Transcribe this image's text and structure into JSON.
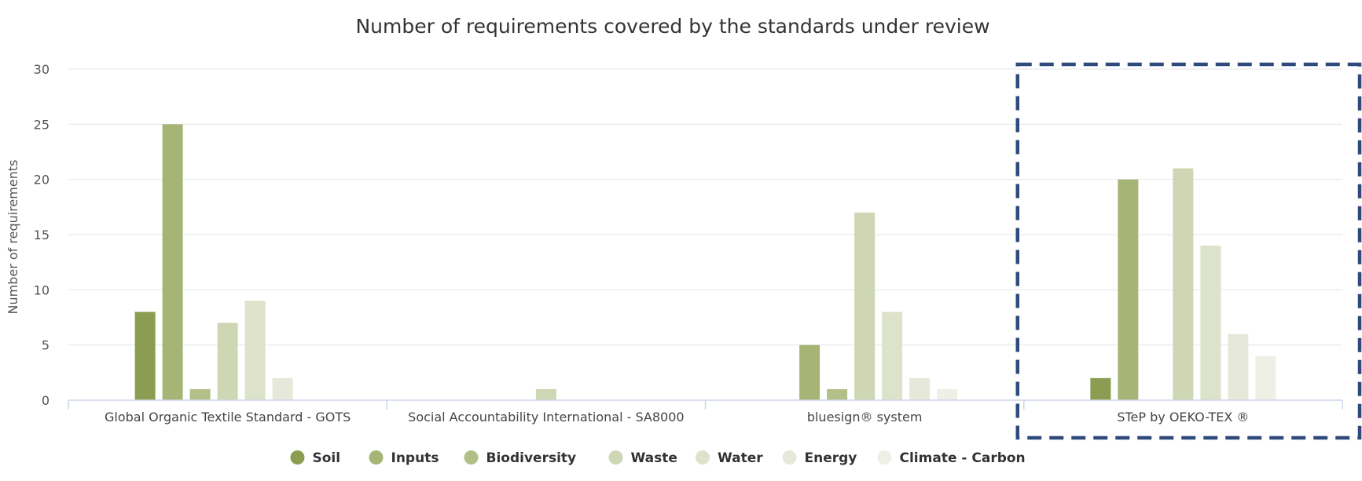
{
  "chart_data": {
    "type": "bar",
    "title": "Number of requirements covered by the standards under review",
    "xlabel": "",
    "ylabel": "Number of requirements",
    "ylim": [
      0,
      30
    ],
    "yticks": [
      0,
      5,
      10,
      15,
      20,
      25,
      30
    ],
    "grid": true,
    "legend_position": "bottom",
    "highlighted_category": "STeP by OEKO-TEX ®",
    "highlight_color": "#2e4a7d",
    "categories": [
      "Global Organic Textile Standard - GOTS",
      "Social Accountability International - SA8000",
      "bluesign® system",
      "STeP by OEKO-TEX ®"
    ],
    "series": [
      {
        "name": "Soil",
        "color": "#8c9c50",
        "values": [
          8,
          0,
          0,
          2
        ]
      },
      {
        "name": "Inputs",
        "color": "#a6b475",
        "values": [
          25,
          0,
          5,
          20
        ]
      },
      {
        "name": "Biodiversity",
        "color": "#b3bf88",
        "values": [
          1,
          0,
          1,
          0
        ]
      },
      {
        "name": "Waste",
        "color": "#ced6b4",
        "values": [
          7,
          1,
          17,
          21
        ]
      },
      {
        "name": "Water",
        "color": "#dde2cb",
        "values": [
          9,
          0,
          8,
          14
        ]
      },
      {
        "name": "Energy",
        "color": "#e6e9da",
        "values": [
          2,
          0,
          2,
          6
        ]
      },
      {
        "name": "Climate - Carbon",
        "color": "#eef0e6",
        "values": [
          0,
          0,
          1,
          4
        ]
      }
    ]
  }
}
